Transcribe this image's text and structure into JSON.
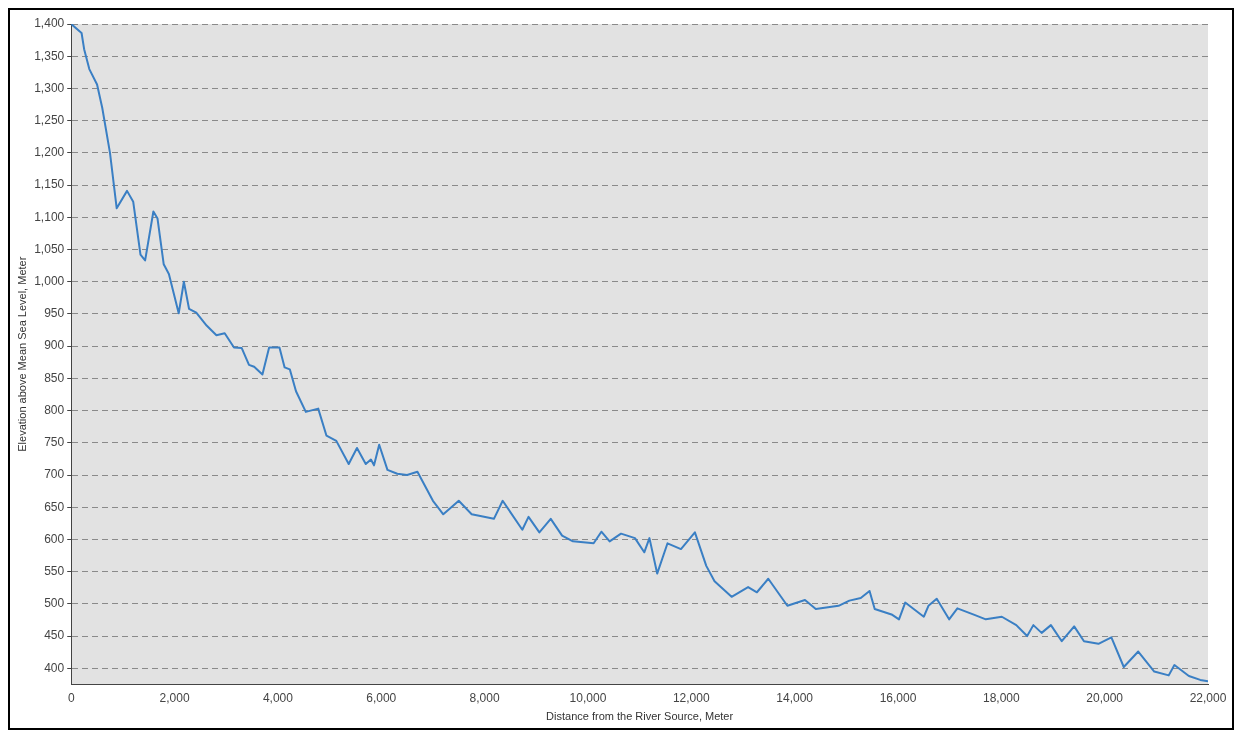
{
  "chart_data": {
    "type": "line",
    "xlabel": "Distance from the River Source, Meter",
    "ylabel": "Elevation above Mean Sea Level, Meter",
    "xlim": [
      0,
      22000
    ],
    "ylim": [
      375,
      1400
    ],
    "xticks": [
      {
        "value": 0,
        "label": "0"
      },
      {
        "value": 2000,
        "label": "2,000"
      },
      {
        "value": 4000,
        "label": "4,000"
      },
      {
        "value": 6000,
        "label": "6,000"
      },
      {
        "value": 8000,
        "label": "8,000"
      },
      {
        "value": 10000,
        "label": "10,000"
      },
      {
        "value": 12000,
        "label": "12,000"
      },
      {
        "value": 14000,
        "label": "14,000"
      },
      {
        "value": 16000,
        "label": "16,000"
      },
      {
        "value": 18000,
        "label": "18,000"
      },
      {
        "value": 20000,
        "label": "20,000"
      },
      {
        "value": 22000,
        "label": "22,000"
      }
    ],
    "yticks": [
      400,
      450,
      500,
      550,
      600,
      650,
      700,
      750,
      800,
      850,
      900,
      950,
      {
        "value": 1000,
        "label": "1,000"
      },
      {
        "value": 1050,
        "label": "1,050"
      },
      {
        "value": 1100,
        "label": "1,100"
      },
      {
        "value": 1150,
        "label": "1,150"
      },
      {
        "value": 1200,
        "label": "1,200"
      },
      {
        "value": 1250,
        "label": "1,250"
      },
      {
        "value": 1300,
        "label": "1,300"
      },
      {
        "value": 1350,
        "label": "1,350"
      },
      {
        "value": 1400,
        "label": "1,400"
      }
    ],
    "grid": "y",
    "legend": false,
    "marker": "none",
    "line_style": "solid",
    "series": [
      {
        "color": "#3a7fc4",
        "x": [
          0,
          200,
          250,
          350,
          500,
          600,
          750,
          880,
          1080,
          1200,
          1340,
          1430,
          1590,
          1670,
          1790,
          1890,
          2080,
          2180,
          2280,
          2420,
          2620,
          2810,
          2970,
          3150,
          3300,
          3440,
          3540,
          3700,
          3830,
          4030,
          4130,
          4230,
          4350,
          4540,
          4780,
          4940,
          5130,
          5370,
          5530,
          5700,
          5800,
          5860,
          5960,
          6120,
          6310,
          6500,
          6700,
          7000,
          7200,
          7500,
          7750,
          8180,
          8350,
          8730,
          8850,
          9060,
          9280,
          9500,
          9710,
          10110,
          10260,
          10420,
          10640,
          10910,
          11090,
          11190,
          11340,
          11540,
          11800,
          12070,
          12290,
          12450,
          12780,
          13100,
          13270,
          13490,
          13860,
          14200,
          14410,
          14850,
          15060,
          15280,
          15450,
          15550,
          15890,
          16020,
          16140,
          16500,
          16590,
          16750,
          16990,
          17150,
          17480,
          17700,
          18010,
          18290,
          18500,
          18620,
          18780,
          18960,
          19170,
          19410,
          19600,
          19880,
          20130,
          20370,
          20650,
          20960,
          21240,
          21350,
          21630,
          21850,
          22000
        ],
        "values": [
          1400,
          1386,
          1361,
          1330,
          1306,
          1270,
          1200,
          1114,
          1141,
          1124,
          1042,
          1033,
          1109,
          1098,
          1027,
          1012,
          951,
          1000,
          958,
          952,
          932,
          917,
          920,
          898,
          897,
          871,
          868,
          856,
          898,
          898,
          867,
          864,
          830,
          798,
          803,
          761,
          753,
          717,
          742,
          717,
          724,
          715,
          747,
          708,
          702,
          700,
          705,
          660,
          639,
          660,
          639,
          632,
          660,
          615,
          635,
          611,
          632,
          606,
          597,
          594,
          612,
          597,
          609,
          602,
          580,
          602,
          547,
          594,
          585,
          611,
          559,
          535,
          511,
          526,
          518,
          539,
          497,
          506,
          492,
          497,
          505,
          509,
          520,
          492,
          483,
          476,
          502,
          480,
          497,
          508,
          476,
          493,
          483,
          476,
          480,
          467,
          450,
          467,
          455,
          467,
          442,
          465,
          442,
          438,
          448,
          402,
          426,
          395,
          389,
          405,
          388,
          382,
          380
        ]
      }
    ]
  }
}
